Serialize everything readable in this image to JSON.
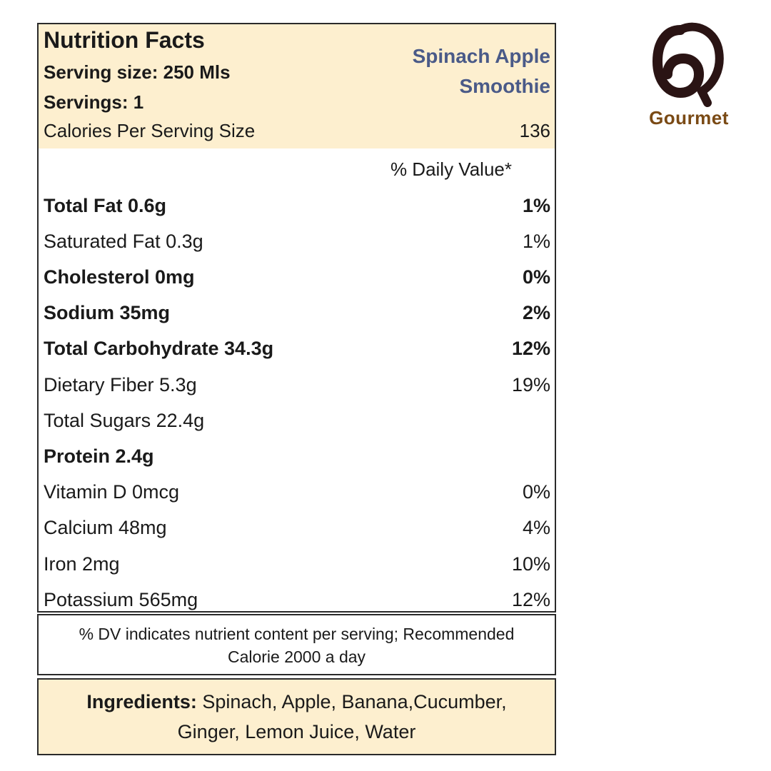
{
  "label": {
    "title": "Nutrition Facts",
    "serving_size": "Serving size: 250 Mls",
    "servings": "Servings: 1",
    "product_name_line1": "Spinach Apple",
    "product_name_line2": "Smoothie",
    "calories_label": "Calories Per Serving Size",
    "calories_value": "136",
    "daily_value_header": "% Daily Value*",
    "rows": [
      {
        "name": "Total Fat 0.6g",
        "dv": "1%",
        "bold": true
      },
      {
        "name": "Saturated Fat 0.3g",
        "dv": "1%",
        "bold": false
      },
      {
        "name": "Cholesterol 0mg",
        "dv": "0%",
        "bold": true
      },
      {
        "name": "Sodium 35mg",
        "dv": "2%",
        "bold": true
      },
      {
        "name": "Total Carbohydrate 34.3g",
        "dv": "12%",
        "bold": true
      },
      {
        "name": "Dietary Fiber 5.3g",
        "dv": "19%",
        "bold": false
      },
      {
        "name": "Total Sugars 22.4g",
        "dv": "",
        "bold": false
      },
      {
        "name": "Protein 2.4g",
        "dv": "",
        "bold": true
      },
      {
        "name": "Vitamin D 0mcg",
        "dv": "0%",
        "bold": false
      },
      {
        "name": "Calcium 48mg",
        "dv": "4%",
        "bold": false
      },
      {
        "name": "Iron 2mg",
        "dv": "10%",
        "bold": false
      },
      {
        "name": "Potassium 565mg",
        "dv": "12%",
        "bold": false
      }
    ]
  },
  "footnote": {
    "line1": "% DV indicates nutrient content per serving; Recommended",
    "line2": "Calorie 2000 a day"
  },
  "ingredients": {
    "heading": "Ingredients:",
    "line1_text": " Spinach, Apple, Banana,Cucumber,",
    "line2_text": "Ginger, Lemon Juice, Water"
  },
  "brand": {
    "name": "Gourmet",
    "logo_icon": "gourmet-logo-icon",
    "logo_color": "#2a1414",
    "text_color": "#7a4a15"
  },
  "colors": {
    "header_band": "#fdefcf",
    "product_name": "#4a5a88",
    "border": "#2a2a2a"
  }
}
